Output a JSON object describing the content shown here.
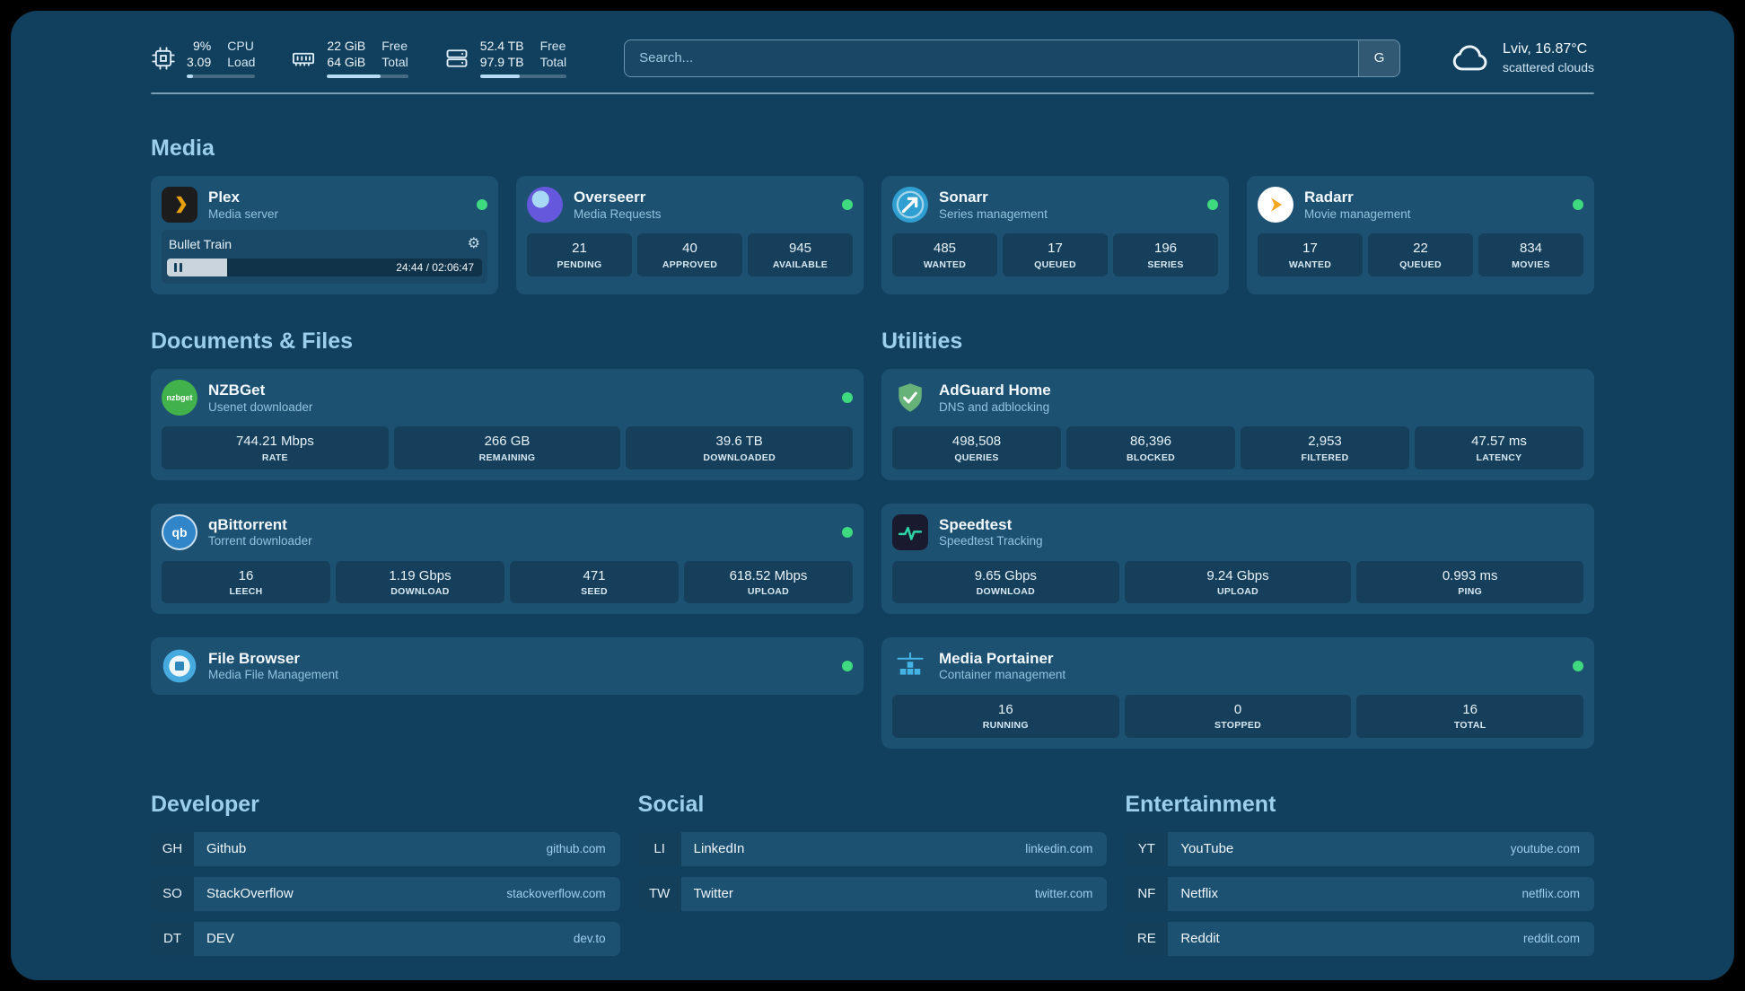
{
  "topbar": {
    "resources": [
      {
        "value_top": "9%",
        "value_bottom": "3.09",
        "label_top": "CPU",
        "label_bottom": "Load",
        "progress_pct": 9
      },
      {
        "value_top": "22 GiB",
        "value_bottom": "64 GiB",
        "label_top": "Free",
        "label_bottom": "Total",
        "progress_pct": 66
      },
      {
        "value_top": "52.4 TB",
        "value_bottom": "97.9 TB",
        "label_top": "Free",
        "label_bottom": "Total",
        "progress_pct": 46
      }
    ],
    "search": {
      "placeholder": "Search...",
      "button": "G"
    },
    "weather": {
      "location": "Lviv, 16.87°C",
      "condition": "scattered clouds"
    }
  },
  "sections": {
    "media": {
      "title": "Media",
      "services": [
        {
          "name": "Plex",
          "subtitle": "Media server",
          "status": "online",
          "now_playing": {
            "title": "Bullet Train",
            "time": "24:44 / 02:06:47",
            "progress_pct": 19
          }
        },
        {
          "name": "Overseerr",
          "subtitle": "Media Requests",
          "status": "online",
          "stats": [
            {
              "value": "21",
              "label": "PENDING"
            },
            {
              "value": "40",
              "label": "APPROVED"
            },
            {
              "value": "945",
              "label": "AVAILABLE"
            }
          ]
        },
        {
          "name": "Sonarr",
          "subtitle": "Series management",
          "status": "online",
          "stats": [
            {
              "value": "485",
              "label": "WANTED"
            },
            {
              "value": "17",
              "label": "QUEUED"
            },
            {
              "value": "196",
              "label": "SERIES"
            }
          ]
        },
        {
          "name": "Radarr",
          "subtitle": "Movie management",
          "status": "online",
          "stats": [
            {
              "value": "17",
              "label": "WANTED"
            },
            {
              "value": "22",
              "label": "QUEUED"
            },
            {
              "value": "834",
              "label": "MOVIES"
            }
          ]
        }
      ]
    },
    "documents": {
      "title": "Documents & Files",
      "services": [
        {
          "name": "NZBGet",
          "subtitle": "Usenet downloader",
          "status": "online",
          "stats": [
            {
              "value": "744.21 Mbps",
              "label": "RATE"
            },
            {
              "value": "266 GB",
              "label": "REMAINING"
            },
            {
              "value": "39.6 TB",
              "label": "DOWNLOADED"
            }
          ]
        },
        {
          "name": "qBittorrent",
          "subtitle": "Torrent downloader",
          "status": "online",
          "stats": [
            {
              "value": "16",
              "label": "LEECH"
            },
            {
              "value": "1.19 Gbps",
              "label": "DOWNLOAD"
            },
            {
              "value": "471",
              "label": "SEED"
            },
            {
              "value": "618.52 Mbps",
              "label": "UPLOAD"
            }
          ]
        },
        {
          "name": "File Browser",
          "subtitle": "Media File Management",
          "status": "online",
          "stats": []
        }
      ]
    },
    "utilities": {
      "title": "Utilities",
      "services": [
        {
          "name": "AdGuard Home",
          "subtitle": "DNS and adblocking",
          "stats": [
            {
              "value": "498,508",
              "label": "QUERIES"
            },
            {
              "value": "86,396",
              "label": "BLOCKED"
            },
            {
              "value": "2,953",
              "label": "FILTERED"
            },
            {
              "value": "47.57 ms",
              "label": "LATENCY"
            }
          ]
        },
        {
          "name": "Speedtest",
          "subtitle": "Speedtest Tracking",
          "stats": [
            {
              "value": "9.65 Gbps",
              "label": "DOWNLOAD"
            },
            {
              "value": "9.24 Gbps",
              "label": "UPLOAD"
            },
            {
              "value": "0.993 ms",
              "label": "PING"
            }
          ]
        },
        {
          "name": "Media Portainer",
          "subtitle": "Container management",
          "status": "online",
          "stats": [
            {
              "value": "16",
              "label": "RUNNING"
            },
            {
              "value": "0",
              "label": "STOPPED"
            },
            {
              "value": "16",
              "label": "TOTAL"
            }
          ]
        }
      ]
    }
  },
  "bookmarks": {
    "groups": [
      {
        "title": "Developer",
        "links": [
          {
            "abbr": "GH",
            "name": "Github",
            "url": "github.com"
          },
          {
            "abbr": "SO",
            "name": "StackOverflow",
            "url": "stackoverflow.com"
          },
          {
            "abbr": "DT",
            "name": "DEV",
            "url": "dev.to"
          }
        ]
      },
      {
        "title": "Social",
        "links": [
          {
            "abbr": "LI",
            "name": "LinkedIn",
            "url": "linkedin.com"
          },
          {
            "abbr": "TW",
            "name": "Twitter",
            "url": "twitter.com"
          }
        ]
      },
      {
        "title": "Entertainment",
        "links": [
          {
            "abbr": "YT",
            "name": "YouTube",
            "url": "youtube.com"
          },
          {
            "abbr": "NF",
            "name": "Netflix",
            "url": "netflix.com"
          },
          {
            "abbr": "RE",
            "name": "Reddit",
            "url": "reddit.com"
          }
        ]
      }
    ]
  },
  "icons": {
    "cpu": "cpu-chip",
    "memory": "ram-stick",
    "disk": "hard-drives",
    "weather": "cloud",
    "gear_glyph": "⚙",
    "nzbget_text": "nzbget",
    "qbittorrent_text": "qb",
    "status_color": "#3fd97f"
  }
}
